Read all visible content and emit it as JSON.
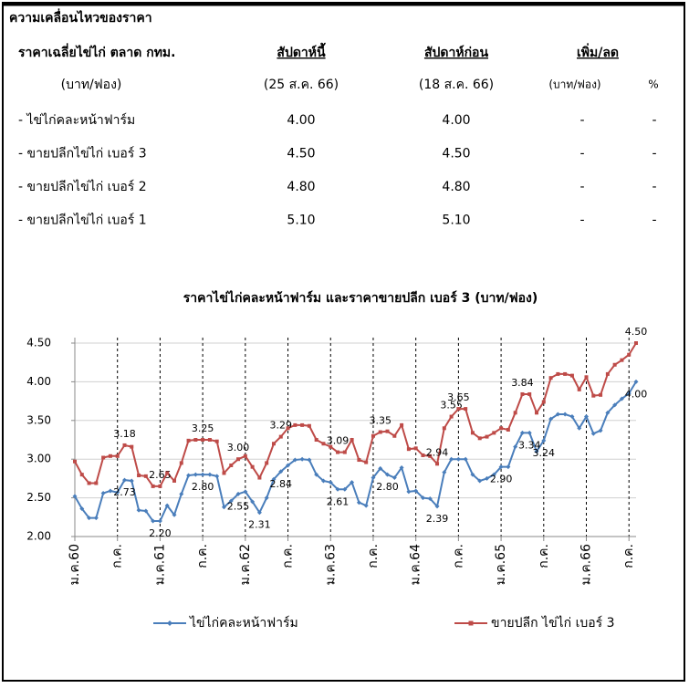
{
  "header": {
    "title": "ความเคลื่อนไหวของราคา"
  },
  "table": {
    "columns": [
      "ราคาเฉลี่ยไข่ไก่ ตลาด กทม.",
      "สัปดาห์นี้",
      "สัปดาห์ก่อน",
      "เพิ่ม/ลด"
    ],
    "subheader": [
      "(บาท/ฟอง)",
      "(25 ส.ค. 66)",
      "(18 ส.ค. 66)",
      "(บาท/ฟอง)",
      "%"
    ],
    "rows": [
      [
        "- ไข่ไก่คละหน้าฟาร์ม",
        "4.00",
        "4.00",
        "-",
        "-"
      ],
      [
        "- ขายปลีกไข่ไก่ เบอร์ 3",
        "4.50",
        "4.50",
        "-",
        "-"
      ],
      [
        "- ขายปลีกไข่ไก่ เบอร์ 2",
        "4.80",
        "4.80",
        "-",
        "-"
      ],
      [
        "- ขายปลีกไข่ไก่ เบอร์ 1",
        "5.10",
        "5.10",
        "-",
        "-"
      ]
    ]
  },
  "chart_data": {
    "type": "line",
    "title": "ราคาไข่ไก่คละหน้าฟาร์ม และราคาขายปลีก เบอร์ 3 (บาท/ฟอง)",
    "categories": [
      "ม.ค.60",
      null,
      null,
      null,
      null,
      null,
      "ก.ค.",
      null,
      null,
      null,
      null,
      null,
      "ม.ค.61",
      null,
      null,
      null,
      null,
      null,
      "ก.ค.",
      null,
      null,
      null,
      null,
      null,
      "ม.ค.62",
      null,
      null,
      null,
      null,
      null,
      "ก.ค.",
      null,
      null,
      null,
      null,
      null,
      "ม.ค.63",
      null,
      null,
      null,
      null,
      null,
      "ก.ค.",
      null,
      null,
      null,
      null,
      null,
      "ม.ค.64",
      null,
      null,
      null,
      null,
      null,
      "ก.ค.",
      null,
      null,
      null,
      null,
      null,
      "ม.ค.65",
      null,
      null,
      null,
      null,
      null,
      "ก.ค.",
      null,
      null,
      null,
      null,
      null,
      "ม.ค.66",
      null,
      null,
      null,
      null,
      null,
      "ก.ค.",
      null
    ],
    "ylim": [
      2,
      4.5
    ],
    "yticks": [
      {
        "value": 2,
        "label": "2.00"
      },
      {
        "value": 2.5,
        "label": "2.50"
      },
      {
        "value": 3,
        "label": "3.00"
      },
      {
        "value": 3.5,
        "label": "3.50"
      },
      {
        "value": 4,
        "label": "4.00"
      },
      {
        "value": 4.5,
        "label": "4.50"
      }
    ],
    "grid": true,
    "legend": "bottom",
    "series": [
      {
        "name": "ไข่ไก่คละหน้าฟาร์ม",
        "color": "#4a7ebb",
        "values": [
          2.52,
          2.36,
          2.24,
          2.24,
          2.56,
          2.59,
          2.57,
          2.73,
          2.72,
          2.34,
          2.33,
          2.2,
          2.2,
          2.4,
          2.28,
          2.55,
          2.79,
          2.8,
          2.8,
          2.8,
          2.78,
          2.38,
          2.46,
          2.55,
          2.58,
          2.45,
          2.31,
          2.5,
          2.74,
          2.84,
          2.92,
          2.99,
          3,
          2.99,
          2.8,
          2.72,
          2.7,
          2.61,
          2.61,
          2.7,
          2.44,
          2.4,
          2.76,
          2.88,
          2.8,
          2.76,
          2.89,
          2.58,
          2.59,
          2.5,
          2.49,
          2.39,
          2.83,
          3,
          3,
          3,
          2.8,
          2.72,
          2.75,
          2.8,
          2.9,
          2.9,
          3.16,
          3.34,
          3.34,
          3.1,
          3.24,
          3.52,
          3.58,
          3.58,
          3.55,
          3.4,
          3.55,
          3.33,
          3.37,
          3.6,
          3.7,
          3.78,
          3.85,
          4
        ],
        "value_labels": [
          null,
          null,
          null,
          null,
          null,
          null,
          null,
          "2.73",
          null,
          null,
          null,
          null,
          "2.20",
          null,
          null,
          null,
          null,
          null,
          "2.80",
          null,
          null,
          null,
          null,
          "2.55",
          null,
          null,
          "2.31",
          null,
          null,
          "2.84",
          null,
          null,
          null,
          null,
          null,
          null,
          null,
          "2.61",
          null,
          null,
          null,
          null,
          null,
          null,
          "2.80",
          null,
          null,
          null,
          null,
          null,
          null,
          "2.39",
          null,
          null,
          null,
          null,
          null,
          null,
          null,
          null,
          "2.90",
          null,
          null,
          null,
          "3.34",
          null,
          "3.24",
          null,
          null,
          null,
          null,
          null,
          null,
          null,
          null,
          null,
          null,
          null,
          null,
          "4.00"
        ]
      },
      {
        "name": "ขายปลีก ไข่ไก่ เบอร์ 3",
        "color": "#be4b48",
        "values": [
          2.97,
          2.8,
          2.69,
          2.69,
          3.02,
          3.04,
          3.04,
          3.18,
          3.16,
          2.79,
          2.78,
          2.65,
          2.65,
          2.82,
          2.72,
          2.95,
          3.24,
          3.25,
          3.25,
          3.25,
          3.23,
          2.82,
          2.92,
          3,
          3.04,
          2.9,
          2.76,
          2.95,
          3.2,
          3.29,
          3.4,
          3.44,
          3.44,
          3.43,
          3.25,
          3.2,
          3.16,
          3.09,
          3.09,
          3.25,
          2.99,
          2.96,
          3.3,
          3.35,
          3.36,
          3.3,
          3.44,
          3.13,
          3.14,
          3.05,
          3.04,
          2.94,
          3.4,
          3.55,
          3.65,
          3.65,
          3.34,
          3.27,
          3.29,
          3.34,
          3.4,
          3.38,
          3.6,
          3.84,
          3.84,
          3.6,
          3.74,
          4.05,
          4.1,
          4.1,
          4.08,
          3.9,
          4.06,
          3.82,
          3.83,
          4.1,
          4.22,
          4.28,
          4.35,
          4.5
        ],
        "value_labels": [
          null,
          null,
          null,
          null,
          null,
          null,
          null,
          "3.18",
          null,
          null,
          null,
          null,
          "2.65",
          null,
          null,
          null,
          null,
          null,
          "3.25",
          null,
          null,
          null,
          null,
          "3.00",
          null,
          null,
          null,
          null,
          null,
          "3.29",
          null,
          null,
          null,
          null,
          null,
          null,
          null,
          "3.09",
          null,
          null,
          null,
          null,
          null,
          "3.35",
          null,
          null,
          null,
          null,
          null,
          null,
          null,
          "2.94",
          null,
          "3.55",
          "3.65",
          null,
          null,
          null,
          null,
          null,
          null,
          null,
          null,
          "3.84",
          null,
          null,
          null,
          null,
          null,
          null,
          null,
          null,
          null,
          null,
          null,
          null,
          null,
          null,
          null,
          "4.50"
        ]
      }
    ]
  }
}
